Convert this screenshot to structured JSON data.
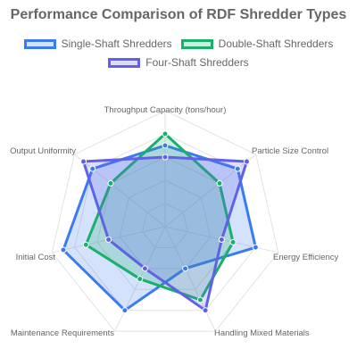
{
  "chart_data": {
    "type": "radar",
    "title": "Performance Comparison of RDF Shredder Types",
    "axes": [
      "Throughput Capacity (tons/hour)",
      "Particle Size Control",
      "Energy Efficiency",
      "Handling Mixed Materials",
      "Maintenance Requirements",
      "Initial Cost",
      "Output Uniformity"
    ],
    "range": [
      0,
      10
    ],
    "grid": true,
    "legend_position": "top",
    "series": [
      {
        "name": "Single-Shaft Shredders",
        "values": [
          7,
          8,
          8,
          4,
          8,
          9,
          8
        ],
        "color": "#3b7bf0",
        "fill": "rgba(59,123,240,0.22)"
      },
      {
        "name": "Double-Shaft Shredders",
        "values": [
          8,
          6,
          6,
          7,
          5,
          7,
          6
        ],
        "color": "#1aaf6d",
        "fill": "rgba(26,175,109,0.22)"
      },
      {
        "name": "Four-Shaft Shredders",
        "values": [
          6,
          9,
          5,
          8,
          4,
          5,
          9
        ],
        "color": "#6161e6",
        "fill": "rgba(97,97,230,0.22)"
      }
    ]
  }
}
